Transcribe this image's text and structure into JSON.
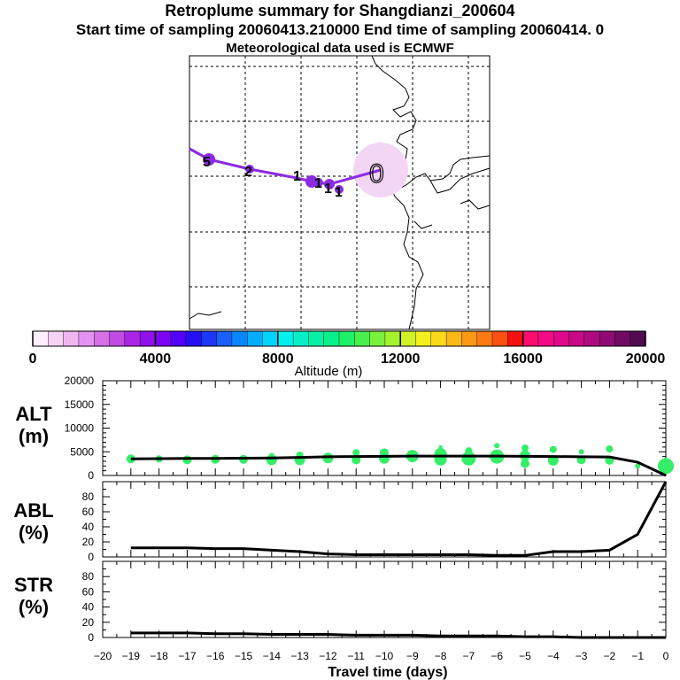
{
  "header": {
    "title": "Retroplume summary for Shangdianzi_200604",
    "sampling_line": "Start time of sampling 20060413.210000      End time of sampling 20060414.      0",
    "met_line": "Meteorological data used is ECMWF"
  },
  "colors": {
    "trajectory": "#8a2be2",
    "release_halo": "#f3d6f3",
    "green_markers": "#33ee66",
    "median_line": "#000000"
  },
  "chart_data": [
    {
      "type": "map",
      "title": "Retroplume trajectory map",
      "trajectory_labels": [
        "5",
        "2",
        "1",
        "1",
        "1",
        "1",
        "0"
      ],
      "release_symbol": "0"
    },
    {
      "type": "colorbar",
      "xlabel": "Altitude (m)",
      "ticks": [
        0,
        4000,
        8000,
        12000,
        16000,
        20000
      ],
      "tick_labels": [
        "0",
        "4000",
        "8000",
        "12000",
        "16000",
        "20000"
      ],
      "range": [
        0,
        20000
      ],
      "colors": [
        "#fdeefd",
        "#f6d2f6",
        "#efb5ef",
        "#e393ef",
        "#d66fe8",
        "#c24ae4",
        "#ac24e6",
        "#9310ee",
        "#7a06f2",
        "#5200f8",
        "#2410f5",
        "#1c38f5",
        "#1a5ff8",
        "#0a86fb",
        "#05aefc",
        "#02d4fb",
        "#02f0f0",
        "#06f0c8",
        "#06f0a6",
        "#08f08a",
        "#1ef06a",
        "#48f04c",
        "#78f23c",
        "#a4f22e",
        "#d0f226",
        "#f4f020",
        "#fad81a",
        "#fcb816",
        "#fc9814",
        "#fc7812",
        "#fc5010",
        "#f41010",
        "#fc0c6e",
        "#f40a86",
        "#e0088c",
        "#c80886",
        "#ae0a80",
        "#900a74",
        "#700a64",
        "#520a52"
      ]
    },
    {
      "type": "scatter+line",
      "panel": "ALT",
      "ylabel": "ALT (m)",
      "ylabel_lines": [
        "ALT",
        "(m)"
      ],
      "ylim": [
        0,
        20000
      ],
      "yticks": [
        0,
        5000,
        10000,
        15000,
        20000
      ],
      "ytick_labels": [
        "0",
        "5000",
        "10000",
        "15000",
        "20000"
      ],
      "xlim": [
        -20,
        0
      ],
      "median_line": {
        "x": [
          -19,
          -18,
          -17,
          -16,
          -15,
          -14,
          -13,
          -12,
          -11,
          -10,
          -9,
          -8,
          -7,
          -6,
          -5,
          -4,
          -3,
          -2,
          -1,
          0
        ],
        "y": [
          3500,
          3550,
          3600,
          3600,
          3650,
          3700,
          3800,
          3950,
          4000,
          4050,
          4100,
          4100,
          4100,
          4100,
          4050,
          4000,
          3950,
          3900,
          2800,
          0
        ]
      },
      "cluster_points": [
        {
          "x": -19,
          "y": 3500,
          "size": 5
        },
        {
          "x": -18,
          "y": 3500,
          "size": 4
        },
        {
          "x": -17,
          "y": 3300,
          "size": 5
        },
        {
          "x": -16,
          "y": 3400,
          "size": 5
        },
        {
          "x": -15,
          "y": 3400,
          "size": 5
        },
        {
          "x": -14,
          "y": 3300,
          "size": 6
        },
        {
          "x": -14,
          "y": 4200,
          "size": 3
        },
        {
          "x": -13,
          "y": 3300,
          "size": 6
        },
        {
          "x": -13,
          "y": 4300,
          "size": 4
        },
        {
          "x": -12,
          "y": 3700,
          "size": 6
        },
        {
          "x": -11,
          "y": 3300,
          "size": 5
        },
        {
          "x": -11,
          "y": 4800,
          "size": 4
        },
        {
          "x": -10,
          "y": 3600,
          "size": 6
        },
        {
          "x": -10,
          "y": 4800,
          "size": 5
        },
        {
          "x": -9,
          "y": 4100,
          "size": 7
        },
        {
          "x": -8,
          "y": 3400,
          "size": 7
        },
        {
          "x": -8,
          "y": 4500,
          "size": 7
        },
        {
          "x": -8,
          "y": 6000,
          "size": 2
        },
        {
          "x": -7,
          "y": 3600,
          "size": 8
        },
        {
          "x": -7,
          "y": 5200,
          "size": 4
        },
        {
          "x": -6,
          "y": 4000,
          "size": 8
        },
        {
          "x": -6,
          "y": 6300,
          "size": 3
        },
        {
          "x": -5,
          "y": 2500,
          "size": 5
        },
        {
          "x": -5,
          "y": 4200,
          "size": 6
        },
        {
          "x": -5,
          "y": 5800,
          "size": 4
        },
        {
          "x": -4,
          "y": 3200,
          "size": 6
        },
        {
          "x": -4,
          "y": 5500,
          "size": 4
        },
        {
          "x": -3,
          "y": 3300,
          "size": 5
        },
        {
          "x": -3,
          "y": 5000,
          "size": 3
        },
        {
          "x": -2,
          "y": 3200,
          "size": 5
        },
        {
          "x": -2,
          "y": 5600,
          "size": 4
        },
        {
          "x": -1,
          "y": 2000,
          "size": 3
        },
        {
          "x": 0,
          "y": 2000,
          "size": 9
        }
      ]
    },
    {
      "type": "line",
      "panel": "ABL",
      "ylabel": "ABL (%)",
      "ylabel_lines": [
        "ABL",
        "(%)"
      ],
      "ylim": [
        0,
        100
      ],
      "yticks": [
        0,
        20,
        40,
        60,
        80
      ],
      "ytick_labels": [
        "0",
        "20",
        "40",
        "60",
        "80"
      ],
      "x": [
        -19,
        -18,
        -17,
        -16,
        -15,
        -14,
        -13,
        -12,
        -11,
        -10,
        -9,
        -8,
        -7,
        -6,
        -5,
        -4,
        -3,
        -2,
        -1,
        0
      ],
      "y": [
        12,
        12,
        12,
        11,
        11,
        9,
        7,
        4,
        3,
        3,
        3,
        3,
        3,
        2,
        2,
        7,
        7,
        9,
        30,
        100
      ]
    },
    {
      "type": "line",
      "panel": "STR",
      "ylabel": "STR (%)",
      "ylabel_lines": [
        "STR",
        "(%)"
      ],
      "ylim": [
        0,
        100
      ],
      "yticks": [
        0,
        20,
        40,
        60,
        80
      ],
      "ytick_labels": [
        "0",
        "20",
        "40",
        "60",
        "80"
      ],
      "xlabel": "Travel time (days)",
      "xticks": [
        -20,
        -19,
        -18,
        -17,
        -16,
        -15,
        -14,
        -13,
        -12,
        -11,
        -10,
        -9,
        -8,
        -7,
        -6,
        -5,
        -4,
        -3,
        -2,
        -1,
        0
      ],
      "xtick_labels": [
        "−20",
        "−19",
        "−18",
        "−17",
        "−16",
        "−15",
        "−14",
        "−13",
        "−12",
        "−11",
        "−10",
        "−9",
        "−8",
        "−7",
        "−6",
        "−5",
        "−4",
        "−3",
        "−2",
        "−1",
        "0"
      ],
      "x": [
        -19,
        -18,
        -17,
        -16,
        -15,
        -14,
        -13,
        -12,
        -11,
        -10,
        -9,
        -8,
        -7,
        -6,
        -5,
        -4,
        -3,
        -2,
        -1,
        0
      ],
      "y": [
        6,
        6,
        6,
        5,
        5,
        4,
        4,
        4,
        3,
        3,
        3,
        2,
        2,
        2,
        1,
        1,
        0,
        0,
        0,
        0
      ]
    }
  ]
}
